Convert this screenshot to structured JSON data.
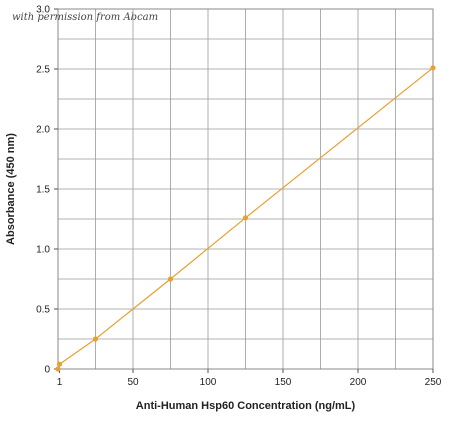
{
  "watermark": "with permission from Abcam",
  "chart_data": {
    "type": "line",
    "xlabel": "Anti-Human Hsp60 Concentration (ng/mL)",
    "ylabel": "Absorbance (450 nm)",
    "xlim": [
      0,
      250
    ],
    "ylim": [
      0,
      3.0
    ],
    "x_ticks": [
      {
        "value": 1,
        "label": "1"
      },
      {
        "value": 50,
        "label": "50"
      },
      {
        "value": 100,
        "label": "100"
      },
      {
        "value": 150,
        "label": "150"
      },
      {
        "value": 200,
        "label": "200"
      },
      {
        "value": 250,
        "label": "250"
      }
    ],
    "y_ticks": [
      {
        "value": 0,
        "label": "0"
      },
      {
        "value": 0.5,
        "label": "0.5"
      },
      {
        "value": 1.0,
        "label": "1.0"
      },
      {
        "value": 1.5,
        "label": "1.5"
      },
      {
        "value": 2.0,
        "label": "2.0"
      },
      {
        "value": 2.5,
        "label": "2.5"
      },
      {
        "value": 3.0,
        "label": "3.0"
      }
    ],
    "x_grid": [
      0,
      25,
      50,
      75,
      100,
      125,
      150,
      175,
      200,
      225,
      250
    ],
    "y_grid": [
      0,
      0.25,
      0.5,
      0.75,
      1.0,
      1.25,
      1.5,
      1.75,
      2.0,
      2.25,
      2.5,
      2.75,
      3.0
    ],
    "grid": true,
    "legend": "none",
    "series": [
      {
        "color": "#e8a030",
        "points": [
          {
            "x": 0,
            "y": 0.0
          },
          {
            "x": 1,
            "y": 0.04
          },
          {
            "x": 25,
            "y": 0.25
          },
          {
            "x": 75,
            "y": 0.75
          },
          {
            "x": 125,
            "y": 1.26
          },
          {
            "x": 250,
            "y": 2.51
          }
        ]
      }
    ]
  }
}
